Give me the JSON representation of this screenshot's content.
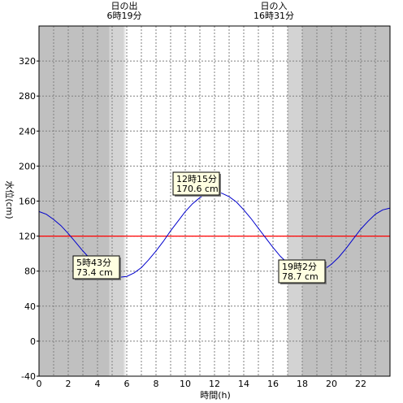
{
  "chart_data": {
    "type": "line",
    "xlabel": "時間(h)",
    "ylabel": "水位(cm)",
    "xlim": [
      0,
      24
    ],
    "ylim": [
      -40,
      360
    ],
    "x_ticks": [
      0,
      2,
      4,
      6,
      8,
      10,
      12,
      14,
      16,
      18,
      20,
      22
    ],
    "y_ticks": [
      -40,
      0,
      40,
      80,
      120,
      160,
      200,
      240,
      280,
      320
    ],
    "grid": true,
    "reference_line": {
      "value": 120,
      "color": "#ff0000"
    },
    "sunrise": {
      "label": "日の出",
      "time_label": "6時19分",
      "hour": 6.317
    },
    "sunset": {
      "label": "日の入",
      "time_label": "16時31分",
      "hour": 16.517
    },
    "twilight_bands": [
      {
        "start": 4.8,
        "end": 5.8,
        "color": "#d3d3d3"
      },
      {
        "start": 5.8,
        "end": 5.9,
        "color": "#e8e8e8"
      },
      {
        "start": 17.0,
        "end": 18.0,
        "color": "#d3d3d3"
      }
    ],
    "night_color": "#c0c0c0",
    "day_color": "#ffffff",
    "series": [
      {
        "color": "#0000cc",
        "x": [
          0,
          0.5,
          1,
          1.5,
          2,
          2.5,
          3,
          3.5,
          4,
          4.5,
          5,
          5.5,
          6,
          6.5,
          7,
          7.5,
          8,
          8.5,
          9,
          9.5,
          10,
          10.5,
          11,
          11.5,
          12,
          12.5,
          13,
          13.5,
          14,
          14.5,
          15,
          15.5,
          16,
          16.5,
          17,
          17.5,
          18,
          18.5,
          19,
          19.5,
          20,
          20.5,
          21,
          21.5,
          22,
          22.5,
          23,
          23.5,
          24
        ],
        "values": [
          148,
          145,
          139,
          132,
          123,
          113,
          103,
          94,
          86,
          79,
          75,
          73,
          74,
          78,
          84,
          93,
          103,
          114,
          126,
          137,
          148,
          157,
          164,
          169,
          170.6,
          169,
          165,
          159,
          150,
          140,
          129,
          118,
          107,
          97,
          89,
          83,
          79,
          78,
          79,
          82,
          88,
          96,
          106,
          117,
          128,
          137,
          145,
          150,
          152
        ]
      }
    ],
    "annotations": [
      {
        "time": "5時43分",
        "value": "73.4 cm",
        "x": 5.717,
        "y": 73.4
      },
      {
        "time": "12時15分",
        "value": "170.6 cm",
        "x": 12.25,
        "y": 170.6
      },
      {
        "time": "19時2分",
        "value": "78.7 cm",
        "x": 19.033,
        "y": 78.7
      }
    ]
  }
}
